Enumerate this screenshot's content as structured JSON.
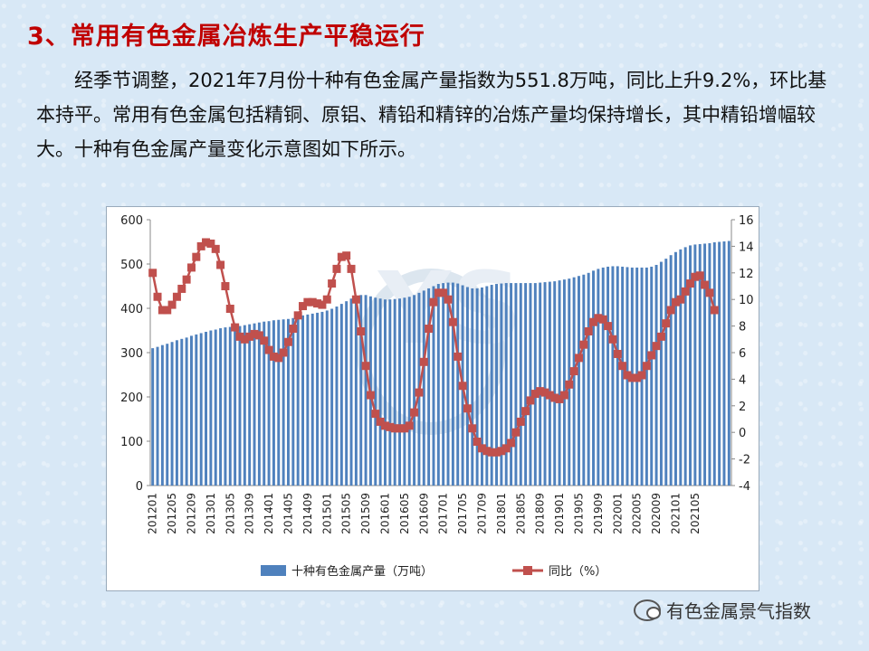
{
  "slide": {
    "title": "3、常用有色金属冶炼生产平稳运行",
    "paragraph": "经季节调整，2021年7月份十种有色金属产量指数为551.8万吨，同比上升9.2%，环比基本持平。常用有色金属包括精铜、原铝、精铅和精锌的冶炼产量均保持增长，其中精铅增幅较大。十种有色金属产量变化示意图如下所示。"
  },
  "watermark": {
    "text": "有色金属景气指数",
    "icon": "wechat-icon"
  },
  "colors": {
    "bar": "#4f81bd",
    "line": "#c0504d",
    "title": "#c00000"
  },
  "chart_data": {
    "type": "bar",
    "title": "",
    "xlabel": "",
    "ylabel": "",
    "y2label": "",
    "ylim": [
      0,
      600
    ],
    "y2lim": [
      -4,
      16
    ],
    "y_ticks": [
      "0",
      "100",
      "200",
      "300",
      "400",
      "500",
      "600"
    ],
    "y2_ticks": [
      "-4",
      "-2",
      "0",
      "2",
      "4",
      "6",
      "8",
      "10",
      "12",
      "14",
      "16"
    ],
    "x_tick_labels": [
      "201201",
      "201205",
      "201209",
      "201301",
      "201305",
      "201309",
      "201401",
      "201405",
      "201409",
      "201501",
      "201505",
      "201509",
      "201601",
      "201605",
      "201609",
      "201701",
      "201705",
      "201709",
      "201801",
      "201805",
      "201809",
      "201901",
      "201905",
      "201909",
      "202001",
      "202005",
      "202009",
      "202101",
      "202105"
    ],
    "grid": false,
    "legend_position": "bottom",
    "series": [
      {
        "name": "十种有色金属产量（万吨）",
        "kind": "bar",
        "axis": "left",
        "values": [
          310,
          313,
          317,
          320,
          324,
          328,
          331,
          334,
          338,
          341,
          344,
          347,
          350,
          352,
          355,
          357,
          358,
          359,
          360,
          362,
          364,
          366,
          368,
          370,
          371,
          373,
          374,
          375,
          376,
          378,
          381,
          384,
          386,
          388,
          390,
          392,
          395,
          399,
          404,
          410,
          416,
          422,
          427,
          430,
          430,
          427,
          424,
          422,
          420,
          420,
          421,
          422,
          424,
          426,
          430,
          435,
          440,
          445,
          450,
          455,
          457,
          458,
          458,
          456,
          452,
          448,
          445,
          445,
          447,
          450,
          453,
          455,
          456,
          457,
          457,
          457,
          457,
          457,
          457,
          457,
          458,
          459,
          460,
          461,
          463,
          465,
          467,
          470,
          473,
          476,
          480,
          485,
          489,
          492,
          494,
          495,
          495,
          494,
          493,
          492,
          492,
          492,
          492,
          494,
          498,
          505,
          512,
          520,
          527,
          533,
          538,
          542,
          544,
          545,
          546,
          547,
          549,
          550,
          551,
          552
        ]
      },
      {
        "name": "同比（%）",
        "kind": "line",
        "axis": "right",
        "values": [
          12.0,
          10.2,
          9.2,
          9.2,
          9.6,
          10.2,
          10.8,
          11.5,
          12.4,
          13.2,
          14.0,
          14.3,
          14.2,
          13.8,
          12.6,
          11.0,
          9.3,
          7.9,
          7.2,
          7.0,
          7.2,
          7.4,
          7.3,
          6.9,
          6.2,
          5.7,
          5.6,
          6.0,
          6.8,
          7.8,
          8.8,
          9.5,
          9.8,
          9.8,
          9.7,
          9.6,
          10.0,
          11.2,
          12.3,
          13.2,
          13.3,
          12.3,
          10.0,
          7.6,
          5.0,
          2.8,
          1.4,
          0.8,
          0.5,
          0.4,
          0.3,
          0.3,
          0.3,
          0.5,
          1.5,
          3.0,
          5.3,
          7.8,
          9.8,
          10.5,
          10.5,
          10.0,
          8.3,
          5.7,
          3.5,
          1.8,
          0.3,
          -0.7,
          -1.2,
          -1.4,
          -1.5,
          -1.5,
          -1.4,
          -1.2,
          -0.8,
          0.0,
          0.8,
          1.6,
          2.4,
          2.9,
          3.1,
          3.0,
          2.8,
          2.6,
          2.5,
          2.8,
          3.6,
          4.6,
          5.6,
          6.6,
          7.6,
          8.3,
          8.6,
          8.5,
          8.0,
          7.0,
          5.9,
          5.0,
          4.3,
          4.1,
          4.1,
          4.3,
          5.0,
          5.8,
          6.5,
          7.2,
          8.2,
          9.2,
          9.8,
          10.0,
          10.6,
          11.2,
          11.7,
          11.8,
          11.1,
          10.5,
          9.2
        ]
      }
    ]
  }
}
